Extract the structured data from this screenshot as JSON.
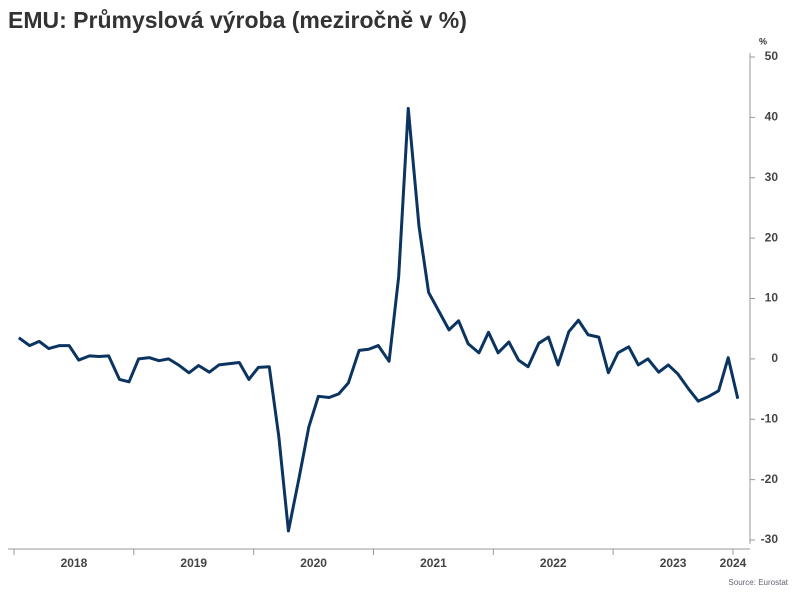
{
  "chart_data": {
    "type": "line",
    "title": "EMU: Průmyslová výroba (meziročně v %)",
    "y_axis_label": "%",
    "source": "Source: Eurostat",
    "x": [
      2018.04,
      2018.13,
      2018.21,
      2018.29,
      2018.38,
      2018.46,
      2018.54,
      2018.63,
      2018.71,
      2018.79,
      2018.88,
      2018.96,
      2019.04,
      2019.13,
      2019.21,
      2019.29,
      2019.38,
      2019.46,
      2019.54,
      2019.63,
      2019.71,
      2019.79,
      2019.88,
      2019.96,
      2020.04,
      2020.13,
      2020.21,
      2020.29,
      2020.38,
      2020.46,
      2020.54,
      2020.63,
      2020.71,
      2020.79,
      2020.88,
      2020.96,
      2021.04,
      2021.13,
      2021.21,
      2021.29,
      2021.38,
      2021.46,
      2021.54,
      2021.63,
      2021.71,
      2021.79,
      2021.88,
      2021.96,
      2022.04,
      2022.13,
      2022.21,
      2022.29,
      2022.38,
      2022.46,
      2022.54,
      2022.63,
      2022.71,
      2022.79,
      2022.88,
      2022.96,
      2023.04,
      2023.13,
      2023.21,
      2023.29,
      2023.38,
      2023.46,
      2023.54,
      2023.63,
      2023.71,
      2023.79,
      2023.88,
      2023.96,
      2024.04
    ],
    "series": [
      {
        "name": "Průmyslová výroba",
        "color": "#0b3461",
        "values": [
          3.5,
          2.2,
          2.9,
          1.7,
          2.2,
          2.2,
          -0.2,
          0.5,
          0.4,
          0.5,
          -3.4,
          -3.8,
          0.0,
          0.2,
          -0.3,
          0.0,
          -1.1,
          -2.3,
          -1.1,
          -2.2,
          -1.0,
          -0.8,
          -0.6,
          -3.4,
          -1.4,
          -1.3,
          -12.9,
          -28.5,
          -19.6,
          -11.3,
          -6.2,
          -6.4,
          -5.8,
          -4.0,
          1.4,
          1.6,
          2.2,
          -0.4,
          13.6,
          41.5,
          21.9,
          11.0,
          8.1,
          4.8,
          6.3,
          2.5,
          1.0,
          4.4,
          1.0,
          2.8,
          -0.2,
          -1.3,
          2.6,
          3.6,
          -1.0,
          4.5,
          6.4,
          4.0,
          3.6,
          -2.3,
          1.0,
          2.0,
          -1.0,
          0.0,
          -2.2,
          -1.0,
          -2.5,
          -5.0,
          -7.0,
          -6.3,
          -5.3,
          0.2,
          -6.6
        ]
      }
    ],
    "xlim": [
      2018,
      2024
    ],
    "xticks": [
      2018,
      2019,
      2020,
      2021,
      2022,
      2023,
      2024
    ],
    "xlabels": [
      {
        "value": 2018.5,
        "label": "2018"
      },
      {
        "value": 2019.5,
        "label": "2019"
      },
      {
        "value": 2020.5,
        "label": "2020"
      },
      {
        "value": 2021.5,
        "label": "2021"
      },
      {
        "value": 2022.5,
        "label": "2022"
      },
      {
        "value": 2023.5,
        "label": "2023"
      },
      {
        "value": 2024,
        "label": "2024"
      }
    ],
    "ylim": [
      -30,
      50
    ],
    "yticks": [
      -30,
      -20,
      -10,
      0,
      10,
      20,
      30,
      40,
      50
    ]
  }
}
